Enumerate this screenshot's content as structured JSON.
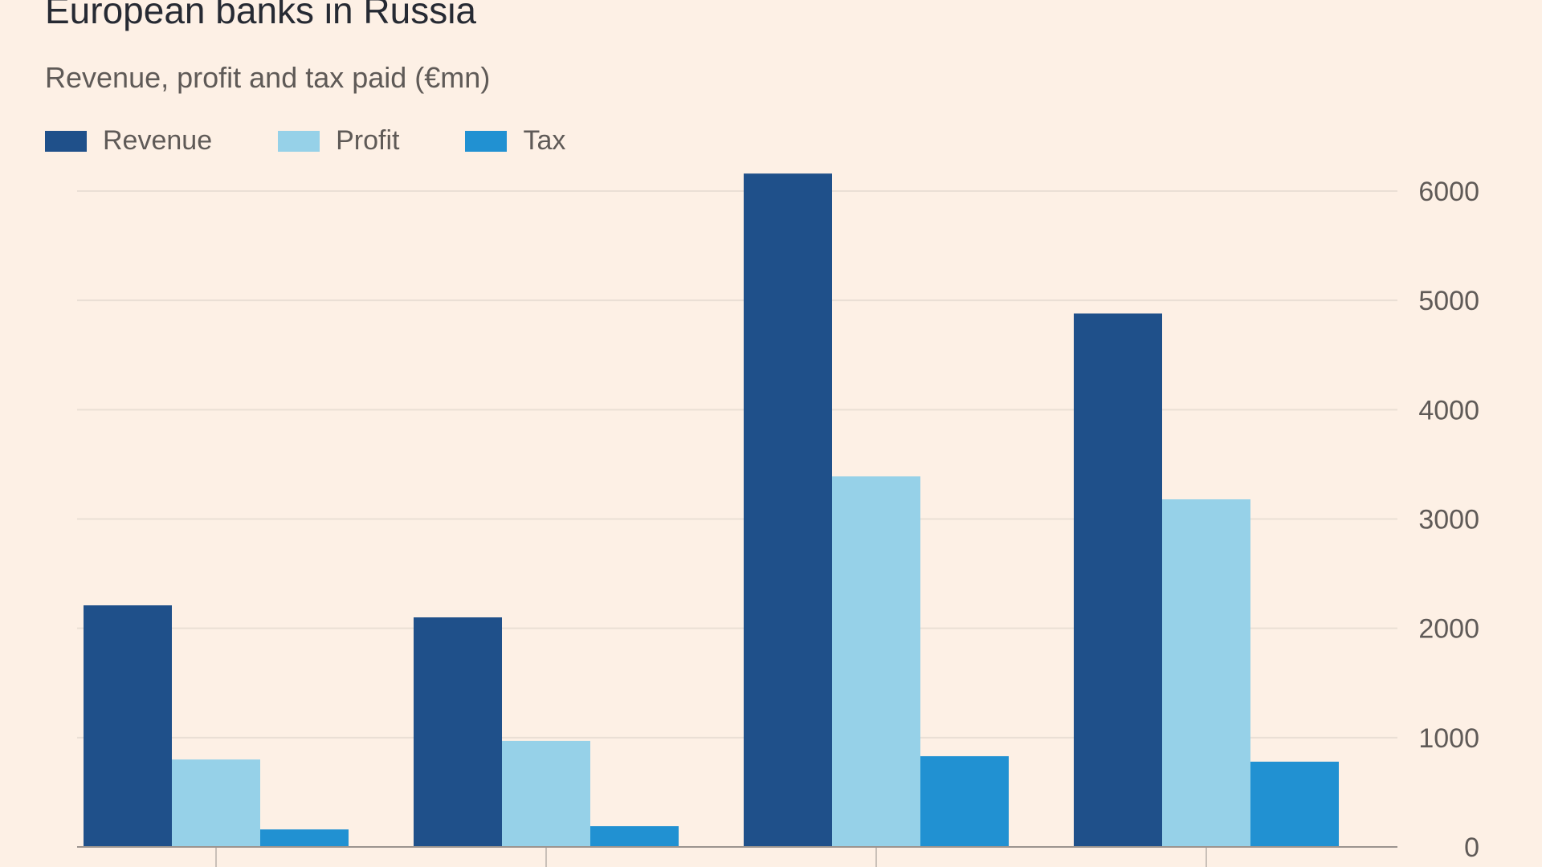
{
  "chart_data": {
    "type": "bar",
    "title": "European banks in Russia",
    "subtitle": "Revenue, profit and tax paid (€mn)",
    "xlabel": "",
    "ylabel": "",
    "categories": [
      "",
      "",
      "",
      ""
    ],
    "series": [
      {
        "name": "Revenue",
        "color": "#1f508a",
        "values": [
          2210,
          2100,
          6160,
          4880
        ]
      },
      {
        "name": "Profit",
        "color": "#96d1e8",
        "values": [
          800,
          970,
          3390,
          3180
        ]
      },
      {
        "name": "Tax",
        "color": "#2191d2",
        "values": [
          160,
          190,
          830,
          780
        ]
      }
    ],
    "ylim": [
      0,
      6000
    ],
    "yticks": [
      "0",
      "1000",
      "2000",
      "3000",
      "4000",
      "5000",
      "6000"
    ],
    "grid": true,
    "y_axis_side": "right",
    "legend_position": "top-left"
  }
}
